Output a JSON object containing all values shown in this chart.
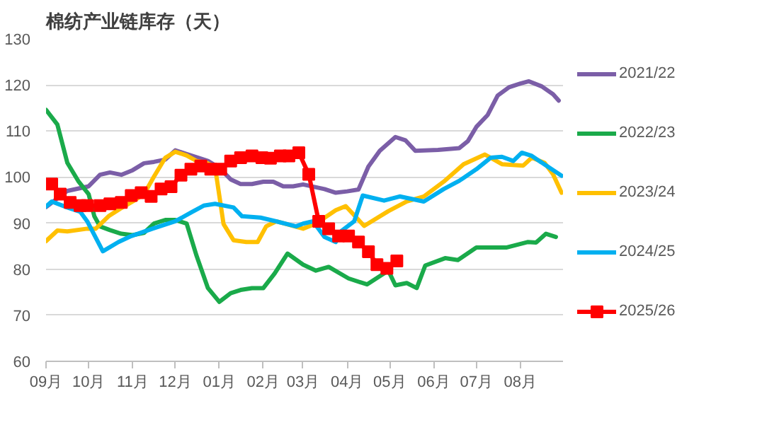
{
  "chart_data": {
    "type": "line",
    "title": "棉纺产业链库存（天）",
    "xlim": [
      "2025-09-01",
      "2026-08-31"
    ],
    "xticks": [
      {
        "value": "2025-09-01",
        "label": "09月"
      },
      {
        "value": "2025-10-01",
        "label": "10月"
      },
      {
        "value": "2025-11-01",
        "label": "11月"
      },
      {
        "value": "2025-12-01",
        "label": "12月"
      },
      {
        "value": "2026-01-01",
        "label": "01月"
      },
      {
        "value": "2026-02-01",
        "label": "02月"
      },
      {
        "value": "2026-03-01",
        "label": "03月"
      },
      {
        "value": "2026-04-01",
        "label": "04月"
      },
      {
        "value": "2026-05-01",
        "label": "05月"
      },
      {
        "value": "2026-06-01",
        "label": "06月"
      },
      {
        "value": "2026-07-01",
        "label": "07月"
      },
      {
        "value": "2026-08-01",
        "label": "08月"
      }
    ],
    "ylim": [
      60,
      130
    ],
    "yticks": [
      60,
      70,
      80,
      90,
      100,
      110,
      120,
      130
    ],
    "grid": "y",
    "legend": "right",
    "series": [
      {
        "name": "2021/22",
        "color": "#7b5ea7",
        "marker": "none",
        "x": [
          "2025-09-01",
          "2025-09-16",
          "2025-10-01",
          "2025-10-09",
          "2025-10-16",
          "2025-10-24",
          "2025-11-01",
          "2025-11-09",
          "2025-11-16",
          "2025-11-24",
          "2025-12-01",
          "2025-12-09",
          "2025-12-16",
          "2025-12-24",
          "2026-01-01",
          "2026-01-09",
          "2026-01-16",
          "2026-01-24",
          "2026-02-01",
          "2026-02-08",
          "2026-02-15",
          "2026-02-22",
          "2026-03-01",
          "2026-03-16",
          "2026-03-24",
          "2026-04-01",
          "2026-04-09",
          "2026-04-16",
          "2026-04-24",
          "2026-05-05",
          "2026-05-12",
          "2026-05-19",
          "2026-06-04",
          "2026-06-19",
          "2026-06-25",
          "2026-07-01",
          "2026-07-09",
          "2026-07-16",
          "2026-07-24",
          "2026-08-01",
          "2026-08-07",
          "2026-08-16",
          "2026-08-24",
          "2026-08-28"
        ],
        "values": [
          93.5,
          97,
          98,
          100.5,
          101,
          100.5,
          101.5,
          103,
          103.3,
          103.8,
          105.8,
          105,
          104.3,
          103.5,
          102,
          99.5,
          98.5,
          98.5,
          99,
          99,
          98,
          98,
          98.4,
          97.4,
          96.6,
          96.9,
          97.3,
          102.3,
          105.7,
          108.7,
          108,
          105.7,
          105.9,
          106.3,
          107.8,
          110.9,
          113.5,
          117.7,
          119.5,
          120.3,
          120.8,
          119.7,
          118,
          116.6
        ]
      },
      {
        "name": "2022/23",
        "color": "#1aaa4a",
        "marker": "none",
        "x": [
          "2025-09-01",
          "2025-09-09",
          "2025-09-16",
          "2025-09-24",
          "2025-10-01",
          "2025-10-05",
          "2025-10-09",
          "2025-10-16",
          "2025-10-24",
          "2025-11-01",
          "2025-11-09",
          "2025-11-16",
          "2025-11-24",
          "2025-12-01",
          "2025-12-09",
          "2025-12-16",
          "2025-12-24",
          "2026-01-01",
          "2026-01-09",
          "2026-01-16",
          "2026-01-24",
          "2026-02-01",
          "2026-02-09",
          "2026-02-18",
          "2026-03-01",
          "2026-03-10",
          "2026-03-19",
          "2026-04-02",
          "2026-04-15",
          "2026-04-30",
          "2026-05-05",
          "2026-05-13",
          "2026-05-20",
          "2026-05-26",
          "2026-06-09",
          "2026-06-18",
          "2026-07-01",
          "2026-07-22",
          "2026-08-06",
          "2026-08-12",
          "2026-08-19",
          "2026-08-26"
        ],
        "values": [
          114.6,
          111.4,
          103.1,
          99,
          96.3,
          91.5,
          89.3,
          88.5,
          87.7,
          87.4,
          87.9,
          89.9,
          90.7,
          90.7,
          89.9,
          82.9,
          75.9,
          72.9,
          74.8,
          75.5,
          75.9,
          75.9,
          79.1,
          83.4,
          81,
          79.7,
          80.5,
          78,
          76.7,
          79.7,
          76.5,
          77,
          75.9,
          80.8,
          82.4,
          82,
          84.7,
          84.7,
          85.9,
          85.8,
          87.7,
          87
        ]
      },
      {
        "name": "2023/24",
        "color": "#ffc000",
        "marker": "none",
        "x": [
          "2025-09-01",
          "2025-09-09",
          "2025-09-16",
          "2025-09-30",
          "2025-10-06",
          "2025-10-15",
          "2025-10-23",
          "2025-11-01",
          "2025-11-09",
          "2025-11-16",
          "2025-11-24",
          "2025-12-01",
          "2025-12-09",
          "2025-12-16",
          "2025-12-23",
          "2025-12-29",
          "2026-01-04",
          "2026-01-11",
          "2026-01-20",
          "2026-01-28",
          "2026-02-03",
          "2026-02-10",
          "2026-03-01",
          "2026-03-10",
          "2026-03-24",
          "2026-03-31",
          "2026-04-13",
          "2026-04-30",
          "2026-05-13",
          "2026-05-25",
          "2026-06-08",
          "2026-06-22",
          "2026-07-07",
          "2026-07-19",
          "2026-08-03",
          "2026-08-09",
          "2026-08-18",
          "2026-08-24",
          "2026-08-30"
        ],
        "values": [
          86.1,
          88.4,
          88.2,
          88.8,
          88.8,
          91.5,
          93.1,
          94.7,
          96.3,
          100.1,
          104.2,
          105.5,
          104.7,
          103.5,
          103.1,
          102.2,
          89.8,
          86.3,
          85.9,
          85.9,
          89.3,
          90.4,
          88.8,
          89.9,
          92.8,
          93.7,
          89.4,
          92.6,
          94.7,
          95.8,
          99,
          102.8,
          104.9,
          102.8,
          102.5,
          104.2,
          103.1,
          100.6,
          96.6
        ]
      },
      {
        "name": "2024/25",
        "color": "#00b0f0",
        "marker": "none",
        "x": [
          "2025-09-01",
          "2025-09-05",
          "2025-09-16",
          "2025-09-25",
          "2025-09-30",
          "2025-10-11",
          "2025-10-22",
          "2025-10-31",
          "2025-11-15",
          "2025-12-01",
          "2025-12-12",
          "2025-12-21",
          "2025-12-29",
          "2026-01-11",
          "2026-01-17",
          "2026-01-30",
          "2026-02-10",
          "2026-02-24",
          "2026-03-01",
          "2026-03-08",
          "2026-03-16",
          "2026-03-24",
          "2026-03-28",
          "2026-04-06",
          "2026-04-12",
          "2026-04-27",
          "2026-05-08",
          "2026-05-25",
          "2026-06-08",
          "2026-06-19",
          "2026-07-01",
          "2026-07-11",
          "2026-07-19",
          "2026-07-27",
          "2026-08-02",
          "2026-08-09",
          "2026-08-23",
          "2026-08-30"
        ],
        "values": [
          93.6,
          94.7,
          93.4,
          92.5,
          90.4,
          83.9,
          85.9,
          87.2,
          88.8,
          90.4,
          92.3,
          93.8,
          94.2,
          93.4,
          91.5,
          91.2,
          90.4,
          89.3,
          89.9,
          90.4,
          87,
          85.9,
          88.3,
          90.4,
          96,
          94.9,
          95.8,
          94.7,
          97.4,
          99.2,
          101.7,
          104.2,
          104.4,
          103.5,
          105.3,
          104.6,
          101.7,
          100.3
        ]
      },
      {
        "name": "2025/26",
        "color": "#ff0000",
        "marker": "square",
        "x": [
          "2025-09-05",
          "2025-09-11",
          "2025-09-18",
          "2025-09-25",
          "2025-09-30",
          "2025-10-09",
          "2025-10-16",
          "2025-10-24",
          "2025-10-31",
          "2025-11-07",
          "2025-11-14",
          "2025-11-21",
          "2025-11-28",
          "2025-12-05",
          "2025-12-12",
          "2025-12-19",
          "2025-12-26",
          "2026-01-02",
          "2026-01-09",
          "2026-01-16",
          "2026-01-24",
          "2026-01-31",
          "2026-02-06",
          "2026-02-13",
          "2026-02-19",
          "2026-02-26",
          "2026-03-05",
          "2026-03-12",
          "2026-03-19",
          "2026-03-26",
          "2026-04-02",
          "2026-04-09",
          "2026-04-16",
          "2026-04-22",
          "2026-04-29",
          "2026-05-06"
        ],
        "values": [
          98.5,
          96.3,
          94.5,
          93.8,
          93.8,
          93.8,
          94.2,
          94.5,
          96,
          96.6,
          95.8,
          97.4,
          97.9,
          100.4,
          101.7,
          102.4,
          101.7,
          101.7,
          103.5,
          104.2,
          104.6,
          104.2,
          104.1,
          104.6,
          104.6,
          105.3,
          100.6,
          90.4,
          88.8,
          87.2,
          87.2,
          85.9,
          83.8,
          81,
          80.2,
          81.8
        ]
      }
    ]
  }
}
